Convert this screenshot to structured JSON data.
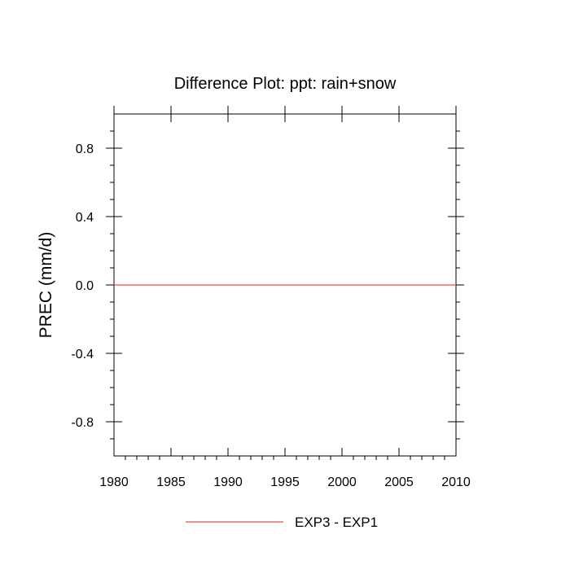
{
  "chart_data": {
    "type": "line",
    "title": "Difference Plot: ppt: rain+snow",
    "xlabel": "",
    "ylabel": "PREC  (mm/d)",
    "xlim": [
      1980,
      2010
    ],
    "ylim": [
      -1.0,
      1.0
    ],
    "x_ticks": [
      1980,
      1985,
      1990,
      1995,
      2000,
      2005,
      2010
    ],
    "x_tick_labels": [
      "1980",
      "1985",
      "1990",
      "1995",
      "2000",
      "2005",
      "2010"
    ],
    "y_ticks": [
      0.8,
      0.4,
      0.0,
      -0.4,
      -0.8
    ],
    "y_tick_labels": [
      "0.8",
      "0.4",
      "0.0",
      "-0.4",
      "-0.8"
    ],
    "grid": false,
    "legend_position": "bottom-center",
    "series": [
      {
        "name": "EXP3 - EXP1",
        "color": "#e05050",
        "x": [
          1980,
          2010
        ],
        "y": [
          0.0,
          0.0
        ]
      }
    ]
  }
}
